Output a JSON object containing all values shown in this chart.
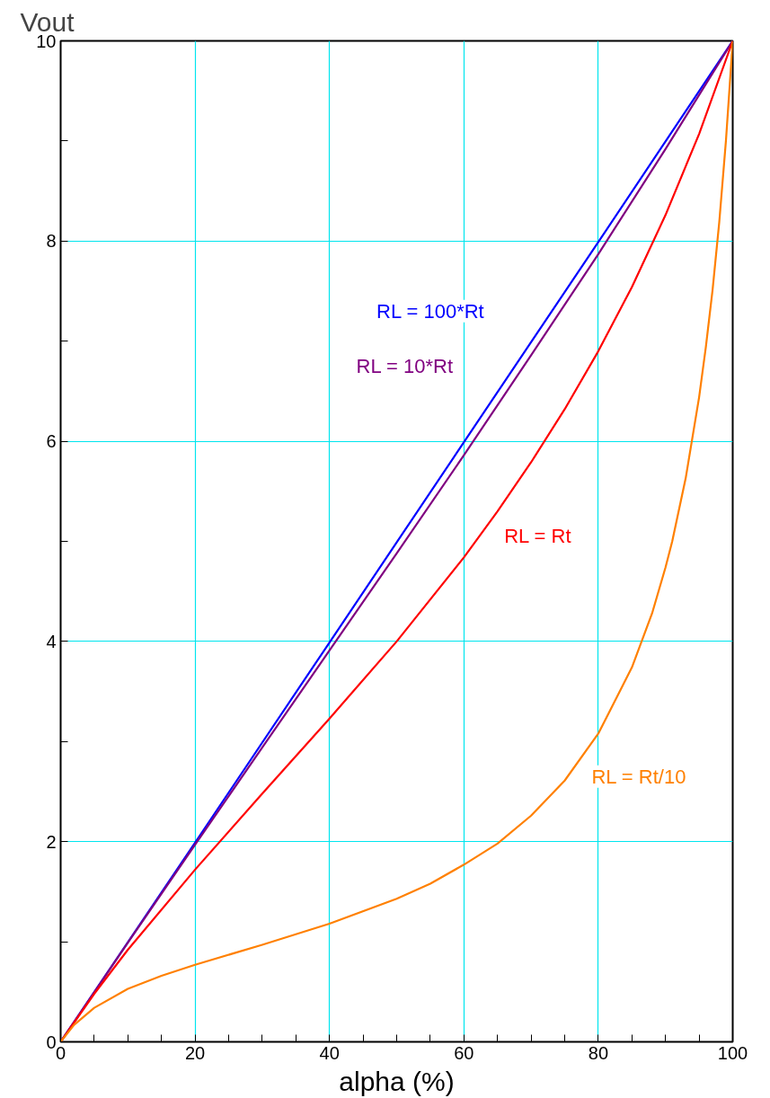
{
  "chart_data": {
    "type": "line",
    "xlabel": "alpha (%)",
    "ylabel": "Vout",
    "xlim": [
      0,
      100
    ],
    "ylim": [
      0,
      10
    ],
    "xticks": [
      0,
      {
        "value": 5,
        "label": null
      },
      {
        "value": 10,
        "label": null
      },
      {
        "value": 15,
        "label": null
      },
      20,
      {
        "value": 25,
        "label": null
      },
      {
        "value": 30,
        "label": null
      },
      {
        "value": 35,
        "label": null
      },
      40,
      {
        "value": 45,
        "label": null
      },
      {
        "value": 50,
        "label": null
      },
      {
        "value": 55,
        "label": null
      },
      60,
      {
        "value": 65,
        "label": null
      },
      {
        "value": 70,
        "label": null
      },
      {
        "value": 75,
        "label": null
      },
      80,
      {
        "value": 85,
        "label": null
      },
      {
        "value": 90,
        "label": null
      },
      {
        "value": 95,
        "label": null
      },
      100
    ],
    "yticks": [
      0,
      {
        "value": 1,
        "label": null
      },
      2,
      {
        "value": 3,
        "label": null
      },
      4,
      {
        "value": 5,
        "label": null
      },
      6,
      {
        "value": 7,
        "label": null
      },
      8,
      {
        "value": 9,
        "label": null
      },
      10
    ],
    "grid": true,
    "marker": "none",
    "line_style": "solid",
    "series": [
      {
        "name": "RL = 100*Rt",
        "color": "#0000ff",
        "x": [
          0,
          20,
          40,
          50,
          60,
          80,
          100
        ],
        "values": [
          0,
          1.99,
          3.99,
          4.99,
          5.99,
          7.99,
          10
        ]
      },
      {
        "name": "RL = 10*Rt",
        "color": "#800080",
        "x": [
          0,
          10,
          20,
          30,
          40,
          50,
          60,
          70,
          80,
          90,
          100
        ],
        "values": [
          0,
          0.99,
          1.97,
          2.94,
          3.91,
          4.88,
          5.86,
          6.86,
          7.87,
          8.92,
          10
        ]
      },
      {
        "name": "RL = Rt",
        "color": "#ff0000",
        "x": [
          0,
          5,
          10,
          20,
          30,
          40,
          50,
          60,
          65,
          70,
          75,
          80,
          85,
          90,
          95,
          100
        ],
        "values": [
          0,
          0.48,
          0.92,
          1.72,
          2.48,
          3.23,
          4.0,
          4.84,
          5.3,
          5.79,
          6.32,
          6.9,
          7.54,
          8.26,
          9.07,
          10
        ]
      },
      {
        "name": "RL = Rt/10",
        "color": "#ff8000",
        "x": [
          0,
          2,
          5,
          10,
          15,
          20,
          30,
          40,
          50,
          55,
          60,
          65,
          70,
          75,
          80,
          85,
          88,
          90,
          91,
          93,
          95,
          96,
          97,
          98,
          99,
          100
        ],
        "values": [
          0,
          0.17,
          0.34,
          0.53,
          0.66,
          0.77,
          0.97,
          1.18,
          1.43,
          1.58,
          1.77,
          1.98,
          2.26,
          2.61,
          3.08,
          3.74,
          4.28,
          4.74,
          5.0,
          5.63,
          6.44,
          6.94,
          7.51,
          8.19,
          9.01,
          10
        ]
      }
    ]
  }
}
